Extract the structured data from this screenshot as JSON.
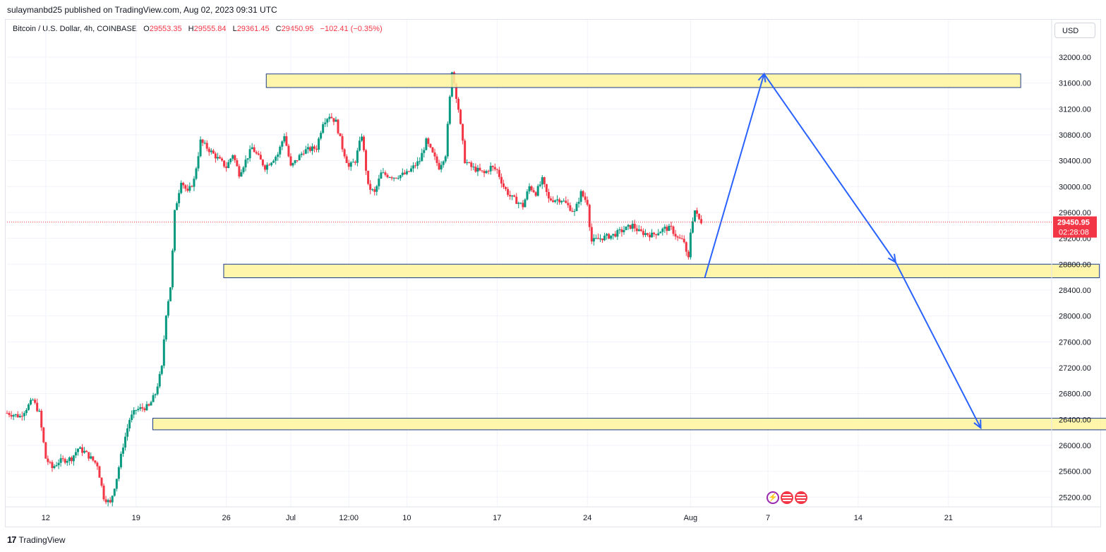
{
  "publisher": "sulaymanbd25 published on TradingView.com, Aug 02, 2023 09:31 UTC",
  "legend": {
    "symbol": "Bitcoin / U.S. Dollar, 4h, COINBASE",
    "o_label": "O",
    "o": "29553.35",
    "h_label": "H",
    "h": "29555.84",
    "l_label": "L",
    "l": "29361.45",
    "c_label": "C",
    "c": "29450.95",
    "change": "−102.41 (−0.35%)"
  },
  "currency_button": "USD",
  "price_label": {
    "price": "29450.95",
    "countdown": "02:28:08"
  },
  "branding": "TradingView",
  "colors": {
    "up": "#089981",
    "down": "#f23645",
    "zone_fill": "#fff59d",
    "zone_border": "#1e3a8a",
    "arrow": "#2962ff"
  },
  "chart_data": {
    "type": "candlestick",
    "title": "Bitcoin / U.S. Dollar, 4h, COINBASE",
    "y_axis": {
      "ticks": [
        25200,
        25600,
        26000,
        26400,
        26800,
        27200,
        27600,
        28000,
        28400,
        28800,
        29200,
        29600,
        30000,
        30400,
        30800,
        31200,
        31600,
        32000
      ],
      "tick_labels": [
        "25200.00",
        "25600.00",
        "26000.00",
        "26400.00",
        "26800.00",
        "27200.00",
        "27600.00",
        "28000.00",
        "28400.00",
        "28800.00",
        "29200.00",
        "29600.00",
        "30000.00",
        "30400.00",
        "30800.00",
        "31200.00",
        "31600.00",
        "32000.00"
      ],
      "range": [
        25050,
        32250
      ]
    },
    "x_axis": {
      "unit": "days since Jun 9, 2023",
      "range": [
        0,
        81
      ],
      "ticks": [
        {
          "x": 3,
          "label": "12"
        },
        {
          "x": 10,
          "label": "19"
        },
        {
          "x": 17,
          "label": "26"
        },
        {
          "x": 22,
          "label": "Jul"
        },
        {
          "x": 26.5,
          "label": "12:00"
        },
        {
          "x": 31,
          "label": "10"
        },
        {
          "x": 38,
          "label": "17"
        },
        {
          "x": 45,
          "label": "24"
        },
        {
          "x": 53,
          "label": "Aug"
        },
        {
          "x": 59,
          "label": "7"
        },
        {
          "x": 66,
          "label": "14"
        },
        {
          "x": 73,
          "label": "21"
        }
      ]
    },
    "close_path": [
      [
        0,
        26500
      ],
      [
        1,
        26450
      ],
      [
        2,
        26700
      ],
      [
        2.5,
        26500
      ],
      [
        3,
        25800
      ],
      [
        3.5,
        25650
      ],
      [
        4,
        25750
      ],
      [
        5,
        25800
      ],
      [
        5.5,
        25950
      ],
      [
        6,
        25900
      ],
      [
        7,
        25700
      ],
      [
        7.5,
        25200
      ],
      [
        8,
        25100
      ],
      [
        8.5,
        25500
      ],
      [
        9,
        26000
      ],
      [
        9.5,
        26400
      ],
      [
        10,
        26550
      ],
      [
        11,
        26600
      ],
      [
        11.5,
        26800
      ],
      [
        12,
        27200
      ],
      [
        12.3,
        28000
      ],
      [
        12.7,
        28500
      ],
      [
        13,
        29600
      ],
      [
        13.5,
        30100
      ],
      [
        14,
        29900
      ],
      [
        14.5,
        30100
      ],
      [
        15,
        30700
      ],
      [
        15.5,
        30600
      ],
      [
        16,
        30500
      ],
      [
        17,
        30300
      ],
      [
        17.5,
        30500
      ],
      [
        18,
        30200
      ],
      [
        19,
        30600
      ],
      [
        20,
        30300
      ],
      [
        21,
        30500
      ],
      [
        21.5,
        30800
      ],
      [
        22,
        30300
      ],
      [
        23,
        30550
      ],
      [
        24,
        30600
      ],
      [
        24.5,
        31000
      ],
      [
        25,
        31100
      ],
      [
        25.5,
        31000
      ],
      [
        26,
        30600
      ],
      [
        26.5,
        30300
      ],
      [
        27,
        30400
      ],
      [
        27.5,
        30800
      ],
      [
        28,
        30000
      ],
      [
        28.5,
        29900
      ],
      [
        29,
        30200
      ],
      [
        30,
        30150
      ],
      [
        31,
        30200
      ],
      [
        32,
        30400
      ],
      [
        32.5,
        30700
      ],
      [
        33,
        30500
      ],
      [
        33.5,
        30300
      ],
      [
        34,
        30500
      ],
      [
        34.5,
        31800
      ],
      [
        35,
        31200
      ],
      [
        35.5,
        30400
      ],
      [
        36,
        30300
      ],
      [
        37,
        30200
      ],
      [
        37.5,
        30300
      ],
      [
        38,
        30250
      ],
      [
        38.5,
        30000
      ],
      [
        39,
        29850
      ],
      [
        40,
        29700
      ],
      [
        40.5,
        30000
      ],
      [
        41,
        29900
      ],
      [
        41.5,
        30100
      ],
      [
        42,
        29800
      ],
      [
        43,
        29800
      ],
      [
        44,
        29600
      ],
      [
        44.5,
        29900
      ],
      [
        45,
        29750
      ],
      [
        45.3,
        29150
      ],
      [
        46,
        29200
      ],
      [
        47,
        29250
      ],
      [
        48,
        29350
      ],
      [
        48.5,
        29400
      ],
      [
        49,
        29300
      ],
      [
        50,
        29250
      ],
      [
        51,
        29350
      ],
      [
        51.5,
        29350
      ],
      [
        52,
        29200
      ],
      [
        52.5,
        29150
      ],
      [
        52.8,
        28800
      ],
      [
        53,
        29300
      ],
      [
        53.3,
        29650
      ],
      [
        53.6,
        29500
      ],
      [
        53.9,
        29450
      ]
    ],
    "zones": [
      {
        "x1": 20.1,
        "x2": 78.6,
        "low": 31530,
        "high": 31740
      },
      {
        "x1": 16.8,
        "x2": 84.7,
        "low": 28590,
        "high": 28800
      },
      {
        "x1": 11.3,
        "x2": 88.8,
        "low": 26240,
        "high": 26420
      }
    ],
    "projection": [
      {
        "x": 54.1,
        "y": 28590
      },
      {
        "x": 58.7,
        "y": 31740
      },
      {
        "x": 68.9,
        "y": 28830
      },
      {
        "x": 75.5,
        "y": 26270
      }
    ],
    "last_price": 29450.95
  }
}
